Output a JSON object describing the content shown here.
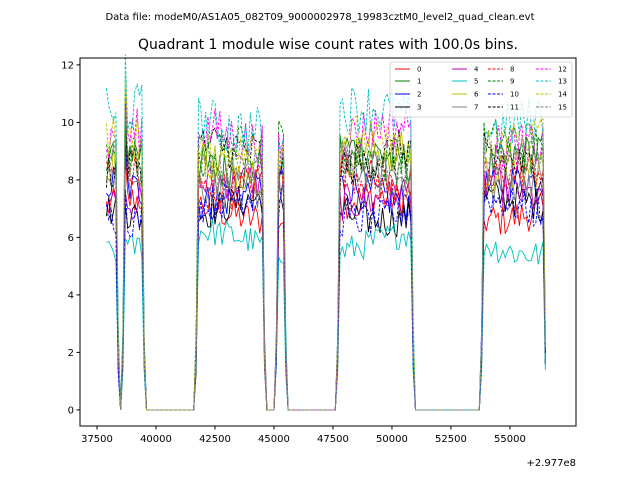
{
  "chart_data": {
    "type": "line",
    "suptitle": "Data file: modeM0/AS1A05_082T09_9000002978_19983cztM0_level2_quad_clean.evt",
    "title": "Quadrant 1 module wise count rates with 100.0s bins.",
    "xlabel": "",
    "ylabel": "",
    "x_offset_label": "+2.977e8",
    "xlim": [
      36780,
      57800
    ],
    "ylim": [
      -0.56,
      12.24
    ],
    "xticks": [
      37500,
      40000,
      42500,
      45000,
      47500,
      50000,
      52500,
      55000
    ],
    "xtick_labels": [
      "37500",
      "40000",
      "42500",
      "45000",
      "47500",
      "50000",
      "52500",
      "55000"
    ],
    "yticks": [
      0,
      2,
      4,
      6,
      8,
      10,
      12
    ],
    "ytick_labels": [
      "0",
      "2",
      "4",
      "6",
      "8",
      "10",
      "12"
    ],
    "grid": false,
    "legend_position": "top-right",
    "x_start": 37900,
    "x_step": 100,
    "x_end": 56500,
    "active_intervals": [
      [
        37900,
        38300
      ],
      [
        38650,
        39450
      ],
      [
        41800,
        44550
      ],
      [
        45150,
        45400
      ],
      [
        47800,
        50800
      ],
      [
        53850,
        56450
      ]
    ],
    "series": [
      {
        "name": "0",
        "color": "#ff0000",
        "dash": false,
        "level": 7.0
      },
      {
        "name": "1",
        "color": "#008000",
        "dash": false,
        "level": 8.7
      },
      {
        "name": "2",
        "color": "#0000ff",
        "dash": false,
        "level": 7.6
      },
      {
        "name": "3",
        "color": "#000000",
        "dash": false,
        "level": 7.0
      },
      {
        "name": "4",
        "color": "#bf00bf",
        "dash": false,
        "level": 7.6
      },
      {
        "name": "5",
        "color": "#00bfbf",
        "dash": false,
        "level": 5.8
      },
      {
        "name": "6",
        "color": "#bfbf00",
        "dash": false,
        "level": 8.6
      },
      {
        "name": "7",
        "color": "#808080",
        "dash": false,
        "level": 8.0
      },
      {
        "name": "8",
        "color": "#ff0000",
        "dash": true,
        "level": 8.0
      },
      {
        "name": "9",
        "color": "#008000",
        "dash": true,
        "level": 9.0
      },
      {
        "name": "10",
        "color": "#0000ff",
        "dash": true,
        "level": 7.0
      },
      {
        "name": "11",
        "color": "#000000",
        "dash": true,
        "level": 8.8
      },
      {
        "name": "12",
        "color": "#ff00ff",
        "dash": true,
        "level": 9.5
      },
      {
        "name": "13",
        "color": "#00bfbf",
        "dash": true,
        "level": 10.1
      },
      {
        "name": "14",
        "color": "#bfbf00",
        "dash": true,
        "level": 9.2
      },
      {
        "name": "15",
        "color": "#808080",
        "dash": true,
        "level": 8.5
      }
    ]
  }
}
